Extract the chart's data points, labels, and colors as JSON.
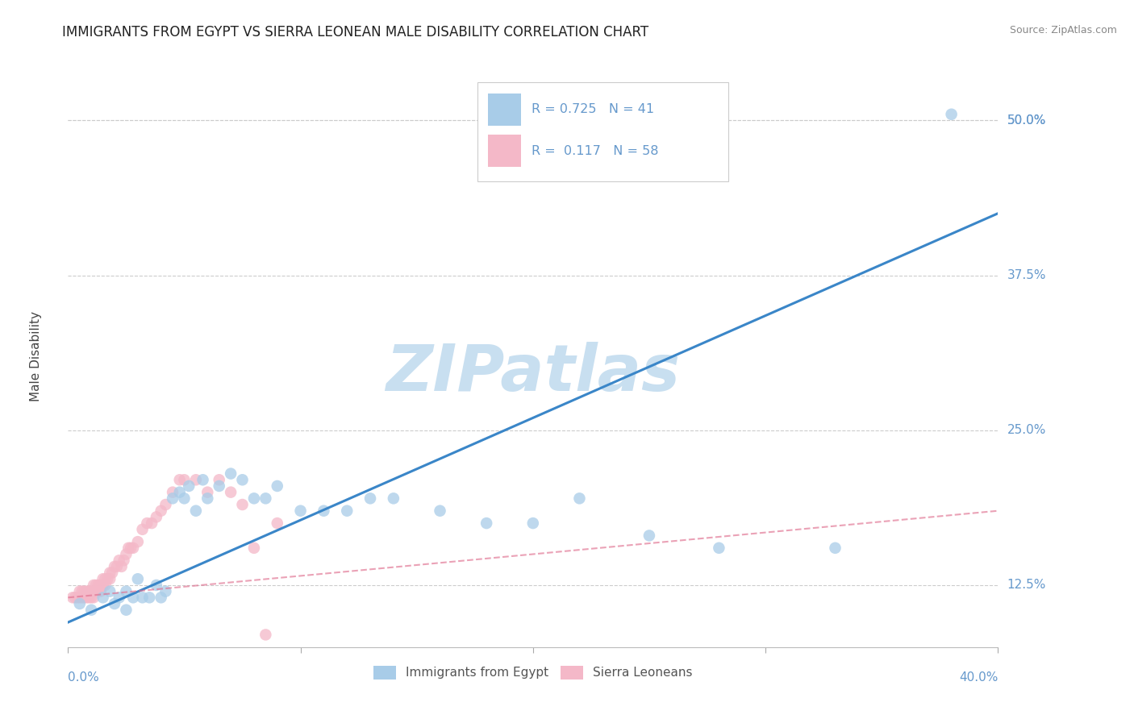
{
  "title": "IMMIGRANTS FROM EGYPT VS SIERRA LEONEAN MALE DISABILITY CORRELATION CHART",
  "source": "Source: ZipAtlas.com",
  "ylabel": "Male Disability",
  "watermark": "ZIPatlas",
  "xlim": [
    0.0,
    0.4
  ],
  "ylim": [
    0.075,
    0.545
  ],
  "yticks": [
    0.125,
    0.25,
    0.375,
    0.5
  ],
  "ytick_labels": [
    "12.5%",
    "25.0%",
    "37.5%",
    "50.0%"
  ],
  "blue_R": 0.725,
  "blue_N": 41,
  "pink_R": 0.117,
  "pink_N": 58,
  "blue_color": "#a8cce8",
  "pink_color": "#f4b8c8",
  "blue_line_color": "#3a86c8",
  "pink_line_color": "#e07090",
  "grid_color": "#cccccc",
  "axis_label_color": "#6699cc",
  "blue_line_x": [
    0.0,
    0.4
  ],
  "blue_line_y": [
    0.095,
    0.425
  ],
  "pink_line_x": [
    0.0,
    0.4
  ],
  "pink_line_y": [
    0.115,
    0.185
  ],
  "blue_scatter_x": [
    0.005,
    0.01,
    0.015,
    0.018,
    0.02,
    0.022,
    0.025,
    0.025,
    0.028,
    0.03,
    0.032,
    0.035,
    0.038,
    0.04,
    0.042,
    0.045,
    0.048,
    0.05,
    0.052,
    0.055,
    0.058,
    0.06,
    0.065,
    0.07,
    0.075,
    0.08,
    0.085,
    0.09,
    0.1,
    0.11,
    0.12,
    0.13,
    0.14,
    0.16,
    0.18,
    0.2,
    0.22,
    0.25,
    0.28,
    0.33,
    0.38
  ],
  "blue_scatter_y": [
    0.11,
    0.105,
    0.115,
    0.12,
    0.11,
    0.115,
    0.105,
    0.12,
    0.115,
    0.13,
    0.115,
    0.115,
    0.125,
    0.115,
    0.12,
    0.195,
    0.2,
    0.195,
    0.205,
    0.185,
    0.21,
    0.195,
    0.205,
    0.215,
    0.21,
    0.195,
    0.195,
    0.205,
    0.185,
    0.185,
    0.185,
    0.195,
    0.195,
    0.185,
    0.175,
    0.175,
    0.195,
    0.165,
    0.155,
    0.155,
    0.505
  ],
  "pink_scatter_x": [
    0.002,
    0.003,
    0.004,
    0.005,
    0.005,
    0.006,
    0.006,
    0.007,
    0.007,
    0.008,
    0.008,
    0.009,
    0.009,
    0.01,
    0.01,
    0.011,
    0.011,
    0.012,
    0.012,
    0.013,
    0.013,
    0.014,
    0.014,
    0.015,
    0.015,
    0.016,
    0.016,
    0.017,
    0.018,
    0.018,
    0.019,
    0.02,
    0.021,
    0.022,
    0.023,
    0.024,
    0.025,
    0.026,
    0.027,
    0.028,
    0.03,
    0.032,
    0.034,
    0.036,
    0.038,
    0.04,
    0.042,
    0.045,
    0.048,
    0.05,
    0.055,
    0.06,
    0.065,
    0.07,
    0.075,
    0.08,
    0.09,
    0.085
  ],
  "pink_scatter_y": [
    0.115,
    0.115,
    0.115,
    0.115,
    0.12,
    0.115,
    0.12,
    0.115,
    0.12,
    0.115,
    0.12,
    0.115,
    0.12,
    0.115,
    0.12,
    0.125,
    0.115,
    0.12,
    0.125,
    0.12,
    0.125,
    0.12,
    0.125,
    0.125,
    0.13,
    0.125,
    0.13,
    0.13,
    0.135,
    0.13,
    0.135,
    0.14,
    0.14,
    0.145,
    0.14,
    0.145,
    0.15,
    0.155,
    0.155,
    0.155,
    0.16,
    0.17,
    0.175,
    0.175,
    0.18,
    0.185,
    0.19,
    0.2,
    0.21,
    0.21,
    0.21,
    0.2,
    0.21,
    0.2,
    0.19,
    0.155,
    0.175,
    0.085
  ]
}
